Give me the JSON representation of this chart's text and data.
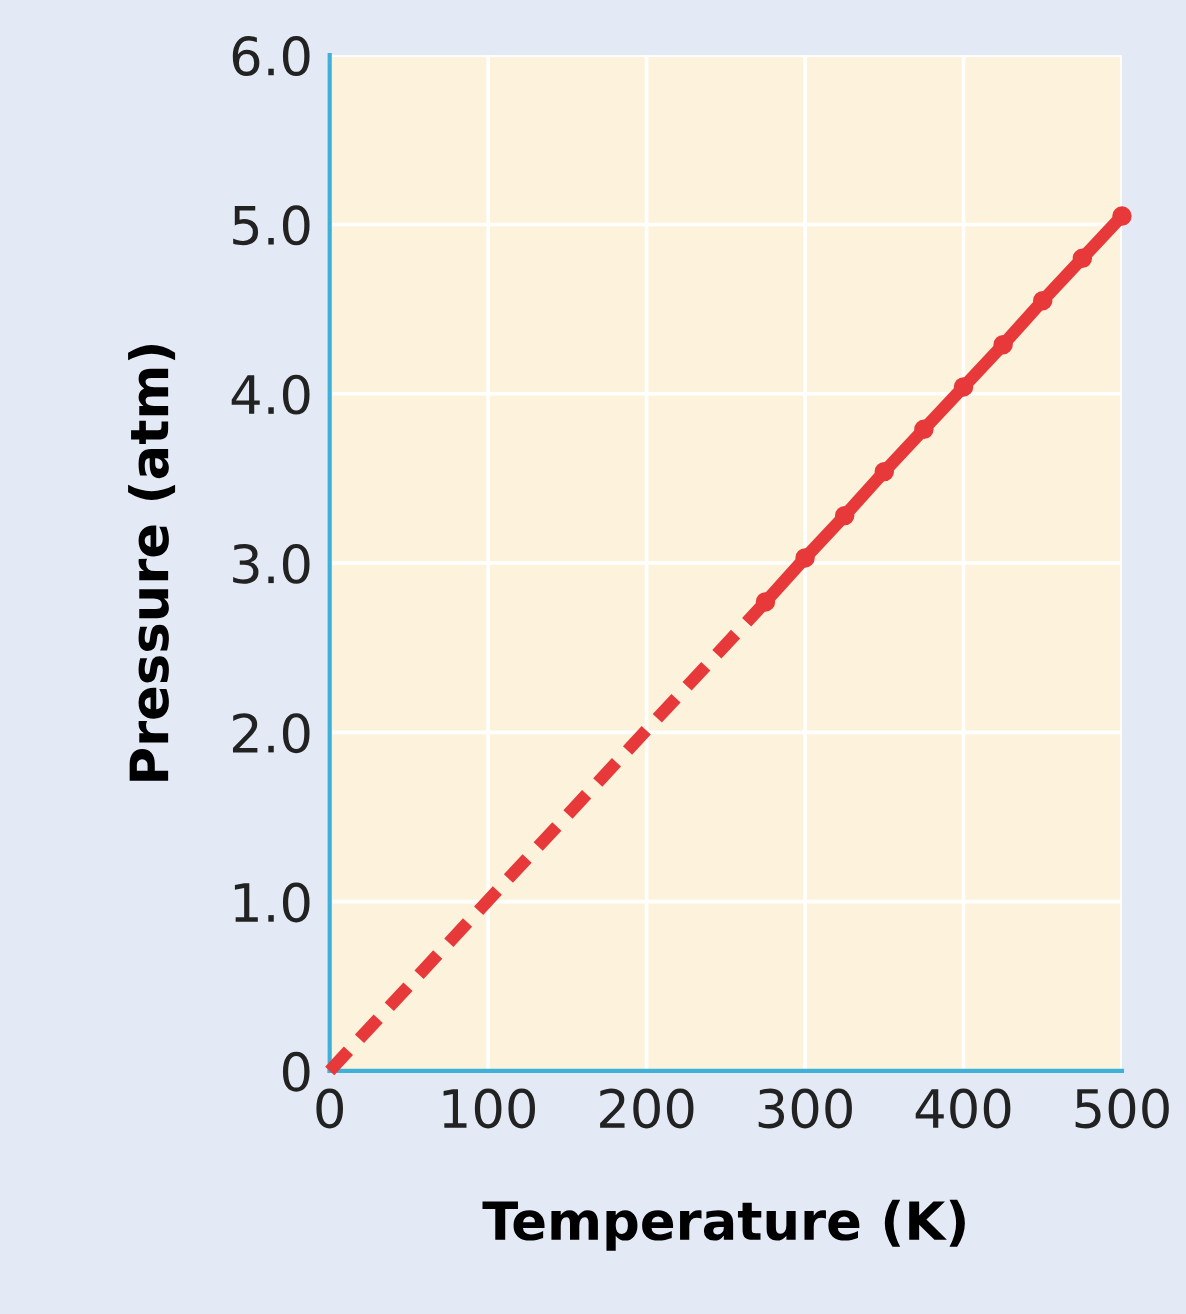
{
  "chart_data": {
    "type": "line",
    "xlabel": "Temperature (K)",
    "ylabel": "Pressure (atm)",
    "series": [
      {
        "x": [
          0,
          275
        ],
        "values": [
          0,
          2.77
        ],
        "color": "#e8393a",
        "line_style": "dashed"
      },
      {
        "x": [
          275,
          300,
          325,
          350,
          375,
          400,
          425,
          450,
          475,
          500
        ],
        "values": [
          2.77,
          3.03,
          3.28,
          3.54,
          3.79,
          4.04,
          4.29,
          4.55,
          4.8,
          5.05
        ],
        "color": "#e8393a",
        "line_style": "solid",
        "marker": "circle"
      }
    ],
    "xlim": [
      0,
      500
    ],
    "xticks": [
      0,
      100,
      200,
      300,
      400,
      500
    ],
    "ylim": [
      0,
      6.0
    ],
    "yticks": [
      {
        "value": 0,
        "label": "0"
      },
      {
        "value": 1,
        "label": "1.0"
      },
      {
        "value": 2,
        "label": "2.0"
      },
      {
        "value": 3,
        "label": "3.0"
      },
      {
        "value": 4,
        "label": "4.0"
      },
      {
        "value": 5,
        "label": "5.0"
      },
      {
        "value": 6,
        "label": "6.0"
      }
    ],
    "grid": true,
    "legend": false
  }
}
